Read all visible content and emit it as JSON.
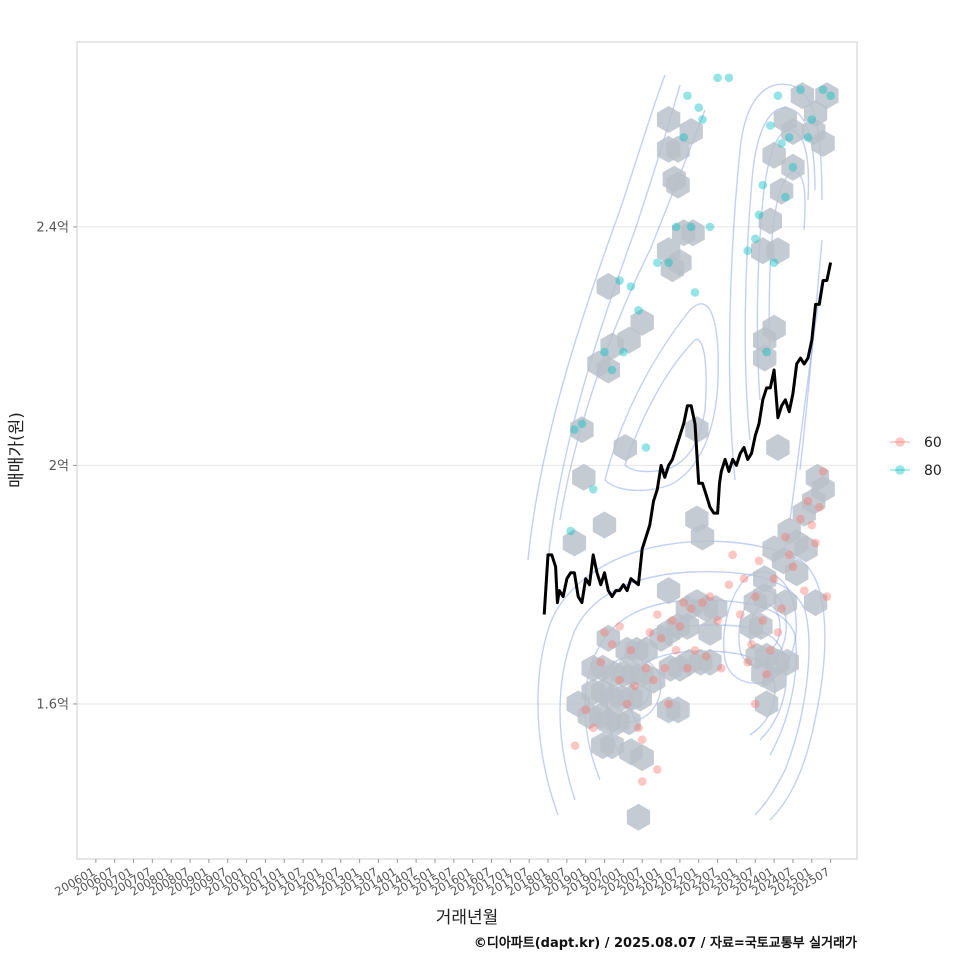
{
  "chart_data": {
    "type": "scatter",
    "title": "",
    "xlabel": "거래년월",
    "ylabel": "매매가(원)",
    "caption": "©디아파트(dapt.kr) / 2025.08.07 / 자료=국토교통부 실거래가",
    "x_tick_labels": [
      "200601",
      "200607",
      "200701",
      "200707",
      "200801",
      "200807",
      "200901",
      "200907",
      "201001",
      "201007",
      "201101",
      "201107",
      "201201",
      "201207",
      "201301",
      "201307",
      "201401",
      "201407",
      "201501",
      "201507",
      "201601",
      "201607",
      "201701",
      "201707",
      "201801",
      "201807",
      "201901",
      "201907",
      "202001",
      "202007",
      "202101",
      "202107",
      "202201",
      "202207",
      "202301",
      "202307",
      "202401",
      "202407",
      "202501",
      "202507"
    ],
    "xlim": [
      2005.5,
      2026.2
    ],
    "y_ticks": [
      {
        "value": 1.6,
        "label": "1.6억"
      },
      {
        "value": 2.0,
        "label": "2억"
      },
      {
        "value": 2.4,
        "label": "2.4억"
      }
    ],
    "ylim": [
      1.34,
      2.71
    ],
    "y_unit": "억원",
    "grid": true,
    "legend": {
      "position": "right",
      "entries": [
        {
          "label": "60",
          "color": "#F8766D"
        },
        {
          "label": "80",
          "color": "#00BFC4"
        }
      ]
    },
    "colors": {
      "hex_fill": "#b8c0c8",
      "contour": "#7b96e6",
      "trend": "#000000",
      "grid": "#e6e6e6"
    },
    "series": [
      {
        "name": "60",
        "type": "scatter",
        "points": [
          [
            2018.72,
            1.53
          ],
          [
            2019.0,
            1.59
          ],
          [
            2019.2,
            1.56
          ],
          [
            2019.4,
            1.67
          ],
          [
            2019.5,
            1.72
          ],
          [
            2019.7,
            1.7
          ],
          [
            2019.9,
            1.64
          ],
          [
            2019.9,
            1.73
          ],
          [
            2020.1,
            1.6
          ],
          [
            2020.2,
            1.69
          ],
          [
            2020.3,
            1.63
          ],
          [
            2020.4,
            1.56
          ],
          [
            2020.5,
            1.47
          ],
          [
            2020.5,
            1.54
          ],
          [
            2020.6,
            1.66
          ],
          [
            2020.7,
            1.72
          ],
          [
            2020.8,
            1.64
          ],
          [
            2020.9,
            1.49
          ],
          [
            2020.9,
            1.75
          ],
          [
            2021.0,
            1.71
          ],
          [
            2021.1,
            1.66
          ],
          [
            2021.2,
            1.6
          ],
          [
            2021.3,
            1.74
          ],
          [
            2021.4,
            1.69
          ],
          [
            2021.5,
            1.73
          ],
          [
            2021.6,
            1.77
          ],
          [
            2021.7,
            1.66
          ],
          [
            2021.8,
            1.76
          ],
          [
            2021.9,
            1.69
          ],
          [
            2022.1,
            1.77
          ],
          [
            2022.2,
            1.68
          ],
          [
            2022.3,
            1.78
          ],
          [
            2022.5,
            1.74
          ],
          [
            2022.6,
            1.66
          ],
          [
            2022.8,
            1.8
          ],
          [
            2022.9,
            1.85
          ],
          [
            2023.1,
            1.75
          ],
          [
            2023.2,
            1.81
          ],
          [
            2023.3,
            1.67
          ],
          [
            2023.4,
            1.7
          ],
          [
            2023.5,
            1.78
          ],
          [
            2023.5,
            1.6
          ],
          [
            2023.6,
            1.84
          ],
          [
            2023.7,
            1.74
          ],
          [
            2023.8,
            1.65
          ],
          [
            2023.9,
            1.69
          ],
          [
            2024.0,
            1.81
          ],
          [
            2024.1,
            1.72
          ],
          [
            2024.2,
            1.76
          ],
          [
            2024.3,
            1.88
          ],
          [
            2024.4,
            1.85
          ],
          [
            2024.5,
            1.83
          ],
          [
            2024.7,
            1.91
          ],
          [
            2024.8,
            1.79
          ],
          [
            2024.9,
            1.94
          ],
          [
            2025.0,
            1.9
          ],
          [
            2025.1,
            1.87
          ],
          [
            2025.2,
            1.93
          ],
          [
            2025.3,
            1.99
          ],
          [
            2025.4,
            1.78
          ]
        ]
      },
      {
        "name": "80",
        "type": "scatter",
        "points": [
          [
            2018.6,
            1.89
          ],
          [
            2018.7,
            2.06
          ],
          [
            2018.9,
            2.07
          ],
          [
            2019.2,
            1.96
          ],
          [
            2019.5,
            2.19
          ],
          [
            2019.7,
            2.16
          ],
          [
            2019.9,
            2.31
          ],
          [
            2020.0,
            2.19
          ],
          [
            2020.2,
            2.3
          ],
          [
            2020.4,
            2.26
          ],
          [
            2020.6,
            2.03
          ],
          [
            2020.9,
            2.34
          ],
          [
            2021.2,
            2.34
          ],
          [
            2021.4,
            2.4
          ],
          [
            2021.6,
            2.55
          ],
          [
            2021.7,
            2.62
          ],
          [
            2021.8,
            2.4
          ],
          [
            2021.9,
            2.29
          ],
          [
            2022.0,
            2.6
          ],
          [
            2022.1,
            2.58
          ],
          [
            2022.3,
            2.4
          ],
          [
            2022.5,
            2.65
          ],
          [
            2022.8,
            2.65
          ],
          [
            2023.3,
            2.36
          ],
          [
            2023.5,
            2.38
          ],
          [
            2023.6,
            2.42
          ],
          [
            2023.7,
            2.47
          ],
          [
            2023.8,
            2.19
          ],
          [
            2023.9,
            2.57
          ],
          [
            2024.0,
            2.34
          ],
          [
            2024.1,
            2.62
          ],
          [
            2024.2,
            2.54
          ],
          [
            2024.3,
            2.45
          ],
          [
            2024.4,
            2.55
          ],
          [
            2024.5,
            2.5
          ],
          [
            2024.7,
            2.63
          ],
          [
            2024.9,
            2.55
          ],
          [
            2025.0,
            2.58
          ],
          [
            2025.3,
            2.63
          ],
          [
            2025.5,
            2.62
          ]
        ]
      },
      {
        "name": "trend",
        "type": "line",
        "x": [
          2017.9,
          2018.0,
          2018.1,
          2018.2,
          2018.25,
          2018.3,
          2018.4,
          2018.5,
          2018.6,
          2018.7,
          2018.8,
          2018.9,
          2019.0,
          2019.1,
          2019.2,
          2019.3,
          2019.4,
          2019.5,
          2019.6,
          2019.7,
          2019.8,
          2019.9,
          2020.0,
          2020.1,
          2020.2,
          2020.4,
          2020.5,
          2020.6,
          2020.7,
          2020.8,
          2020.9,
          2021.0,
          2021.1,
          2021.2,
          2021.3,
          2021.4,
          2021.5,
          2021.6,
          2021.7,
          2021.8,
          2021.9,
          2022.0,
          2022.1,
          2022.2,
          2022.3,
          2022.4,
          2022.5,
          2022.55,
          2022.6,
          2022.7,
          2022.8,
          2022.9,
          2023.0,
          2023.1,
          2023.2,
          2023.3,
          2023.4,
          2023.5,
          2023.6,
          2023.7,
          2023.8,
          2023.9,
          2024.0,
          2024.1,
          2024.2,
          2024.3,
          2024.4,
          2024.5,
          2024.6,
          2024.7,
          2024.8,
          2024.9,
          2025.0,
          2025.1,
          2025.2,
          2025.3,
          2025.4,
          2025.5
        ],
        "y": [
          1.75,
          1.85,
          1.85,
          1.83,
          1.77,
          1.79,
          1.78,
          1.81,
          1.82,
          1.82,
          1.78,
          1.77,
          1.81,
          1.8,
          1.85,
          1.82,
          1.8,
          1.82,
          1.79,
          1.78,
          1.79,
          1.79,
          1.8,
          1.79,
          1.81,
          1.8,
          1.86,
          1.88,
          1.9,
          1.94,
          1.96,
          2.0,
          1.98,
          2.0,
          2.01,
          2.03,
          2.05,
          2.07,
          2.1,
          2.1,
          2.07,
          1.97,
          1.97,
          1.95,
          1.93,
          1.92,
          1.92,
          1.97,
          1.99,
          2.01,
          1.99,
          2.01,
          2.0,
          2.02,
          2.03,
          2.01,
          2.02,
          2.05,
          2.07,
          2.11,
          2.13,
          2.13,
          2.16,
          2.08,
          2.1,
          2.11,
          2.09,
          2.12,
          2.17,
          2.18,
          2.17,
          2.18,
          2.21,
          2.27,
          2.27,
          2.31,
          2.31,
          2.34
        ]
      }
    ],
    "hexbins": [
      [
        2024.75,
        2.62
      ],
      [
        2025.4,
        2.62
      ],
      [
        2025.1,
        2.59
      ],
      [
        2024.3,
        2.58
      ],
      [
        2021.2,
        2.58
      ],
      [
        2021.8,
        2.56
      ],
      [
        2024.5,
        2.56
      ],
      [
        2025.05,
        2.56
      ],
      [
        2021.2,
        2.53
      ],
      [
        2021.45,
        2.53
      ],
      [
        2025.3,
        2.54
      ],
      [
        2024.0,
        2.52
      ],
      [
        2024.5,
        2.5
      ],
      [
        2021.35,
        2.48
      ],
      [
        2021.45,
        2.47
      ],
      [
        2024.2,
        2.46
      ],
      [
        2023.9,
        2.41
      ],
      [
        2021.6,
        2.39
      ],
      [
        2021.85,
        2.39
      ],
      [
        2021.2,
        2.36
      ],
      [
        2021.5,
        2.34
      ],
      [
        2023.7,
        2.36
      ],
      [
        2024.1,
        2.36
      ],
      [
        2021.3,
        2.33
      ],
      [
        2019.6,
        2.3
      ],
      [
        2020.5,
        2.24
      ],
      [
        2020.15,
        2.21
      ],
      [
        2023.75,
        2.21
      ],
      [
        2024.0,
        2.23
      ],
      [
        2019.7,
        2.2
      ],
      [
        2019.35,
        2.17
      ],
      [
        2019.6,
        2.16
      ],
      [
        2023.75,
        2.18
      ],
      [
        2018.9,
        2.06
      ],
      [
        2021.95,
        2.06
      ],
      [
        2020.05,
        2.03
      ],
      [
        2018.95,
        1.98
      ],
      [
        2019.5,
        1.9
      ],
      [
        2018.7,
        1.87
      ],
      [
        2021.95,
        1.91
      ],
      [
        2022.1,
        1.88
      ],
      [
        2024.1,
        2.03
      ],
      [
        2025.15,
        1.98
      ],
      [
        2025.05,
        1.94
      ],
      [
        2024.8,
        1.92
      ],
      [
        2025.3,
        1.96
      ],
      [
        2024.4,
        1.89
      ],
      [
        2024.6,
        1.87
      ],
      [
        2024.85,
        1.86
      ],
      [
        2023.75,
        1.81
      ],
      [
        2024.0,
        1.86
      ],
      [
        2024.25,
        1.84
      ],
      [
        2024.6,
        1.82
      ],
      [
        2021.2,
        1.79
      ],
      [
        2021.7,
        1.76
      ],
      [
        2021.95,
        1.77
      ],
      [
        2022.2,
        1.76
      ],
      [
        2022.45,
        1.76
      ],
      [
        2023.5,
        1.77
      ],
      [
        2023.75,
        1.78
      ],
      [
        2024.3,
        1.77
      ],
      [
        2025.1,
        1.77
      ],
      [
        2021.2,
        1.72
      ],
      [
        2021.45,
        1.73
      ],
      [
        2021.7,
        1.73
      ],
      [
        2022.3,
        1.72
      ],
      [
        2023.4,
        1.73
      ],
      [
        2023.65,
        1.73
      ],
      [
        2019.6,
        1.71
      ],
      [
        2020.1,
        1.69
      ],
      [
        2020.35,
        1.69
      ],
      [
        2020.6,
        1.69
      ],
      [
        2021.0,
        1.71
      ],
      [
        2023.55,
        1.68
      ],
      [
        2023.8,
        1.68
      ],
      [
        2024.1,
        1.67
      ],
      [
        2024.35,
        1.67
      ],
      [
        2019.2,
        1.66
      ],
      [
        2019.45,
        1.66
      ],
      [
        2019.75,
        1.65
      ],
      [
        2020.0,
        1.65
      ],
      [
        2020.25,
        1.65
      ],
      [
        2020.5,
        1.65
      ],
      [
        2020.8,
        1.64
      ],
      [
        2021.25,
        1.66
      ],
      [
        2021.5,
        1.66
      ],
      [
        2021.75,
        1.67
      ],
      [
        2022.05,
        1.67
      ],
      [
        2022.3,
        1.67
      ],
      [
        2023.7,
        1.65
      ],
      [
        2024.0,
        1.64
      ],
      [
        2019.2,
        1.62
      ],
      [
        2019.45,
        1.62
      ],
      [
        2019.7,
        1.61
      ],
      [
        2019.95,
        1.61
      ],
      [
        2020.2,
        1.61
      ],
      [
        2020.45,
        1.61
      ],
      [
        2023.8,
        1.6
      ],
      [
        2018.8,
        1.6
      ],
      [
        2019.1,
        1.58
      ],
      [
        2019.4,
        1.58
      ],
      [
        2019.6,
        1.57
      ],
      [
        2019.85,
        1.57
      ],
      [
        2020.15,
        1.57
      ],
      [
        2021.2,
        1.59
      ],
      [
        2021.45,
        1.59
      ],
      [
        2019.45,
        1.53
      ],
      [
        2019.7,
        1.53
      ],
      [
        2020.2,
        1.52
      ],
      [
        2020.5,
        1.51
      ],
      [
        2020.4,
        1.41
      ]
    ]
  }
}
